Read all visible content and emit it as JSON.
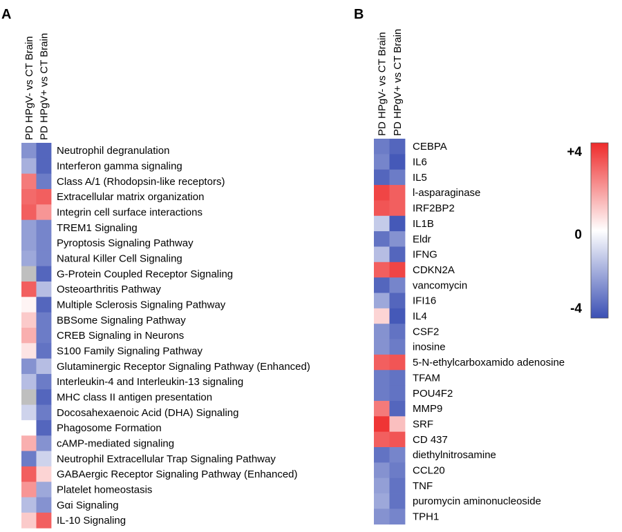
{
  "chart_data": [
    {
      "type": "heatmap",
      "panel": "A",
      "columns": [
        "PD HPgV- vs CT Brain",
        "PD HPgV+ vs CT Brain"
      ],
      "rows": [
        "Neutrophil degranulation",
        "Interferon gamma signaling",
        "Class A/1 (Rhodopsin-like receptors)",
        "Extracellular matrix organization",
        "Integrin cell surface interactions",
        "TREM1 Signaling",
        "Pyroptosis Signaling Pathway",
        "Natural Killer Cell Signaling",
        "G-Protein Coupled Receptor Signaling",
        "Osteoarthritis Pathway",
        "Multiple Sclerosis Signaling Pathway",
        "BBSome Signaling Pathway",
        "CREB Signaling in Neurons",
        "S100 Family Signaling Pathway",
        "Glutaminergic Receptor Signaling Pathway (Enhanced)",
        "Interleukin-4 and Interleukin-13 signaling",
        "MHC class II antigen presentation",
        "Docosahexaenoic Acid (DHA) Signaling",
        "Phagosome Formation",
        "cAMP-mediated signaling",
        "Neutrophil Extracellular Trap Signaling Pathway",
        "GABAergic Receptor Signaling Pathway (Enhanced)",
        "Platelet homeostasis",
        "Gαi Signaling",
        "IL-10 Signaling"
      ],
      "values": [
        [
          -2.5,
          -3.5
        ],
        [
          -1.8,
          -3.5
        ],
        [
          2.5,
          -3.0
        ],
        [
          2.8,
          3.0
        ],
        [
          3.0,
          2.0
        ],
        [
          -2.2,
          -2.8
        ],
        [
          -2.2,
          -2.8
        ],
        [
          -2.0,
          -2.8
        ],
        [
          null,
          -3.5
        ],
        [
          3.0,
          -1.5
        ],
        [
          0.2,
          -3.5
        ],
        [
          1.0,
          -3.0
        ],
        [
          1.5,
          -3.0
        ],
        [
          0.5,
          -3.2
        ],
        [
          -2.5,
          -1.5
        ],
        [
          -1.5,
          -3.0
        ],
        [
          null,
          -3.5
        ],
        [
          -1.0,
          -3.0
        ],
        [
          0.0,
          -3.5
        ],
        [
          1.5,
          -2.5
        ],
        [
          -3.0,
          -1.0
        ],
        [
          3.0,
          0.8
        ],
        [
          2.0,
          -2.0
        ],
        [
          -1.5,
          -2.5
        ],
        [
          1.0,
          3.0
        ]
      ]
    },
    {
      "type": "heatmap",
      "panel": "B",
      "columns": [
        "PD HPgV- vs CT Brain",
        "PD HPgV+ vs CT Brain"
      ],
      "rows": [
        "CEBPA",
        "IL6",
        "IL5",
        "l-asparaginase",
        "IRF2BP2",
        "IL1B",
        "Eldr",
        "IFNG",
        "CDKN2A",
        "vancomycin",
        "IFI16",
        "IL4",
        "CSF2",
        "inosine",
        "5-N-ethylcarboxamido adenosine",
        "TFAM",
        "POU4F2",
        "MMP9",
        "SRF",
        "CD 437",
        "diethylnitrosamine",
        "CCL20",
        "TNF",
        "puromycin aminonucleoside",
        "TPH1"
      ],
      "values": [
        [
          -3.0,
          -3.5
        ],
        [
          -2.8,
          -3.8
        ],
        [
          -3.5,
          -3.0
        ],
        [
          3.5,
          3.0
        ],
        [
          3.2,
          3.0
        ],
        [
          -1.2,
          -3.8
        ],
        [
          -3.2,
          -2.5
        ],
        [
          -1.5,
          -3.5
        ],
        [
          3.0,
          3.5
        ],
        [
          -3.5,
          -2.8
        ],
        [
          -2.0,
          -3.5
        ],
        [
          0.8,
          -3.8
        ],
        [
          -2.5,
          -3.2
        ],
        [
          -2.5,
          -3.0
        ],
        [
          3.0,
          3.2
        ],
        [
          -3.0,
          -3.2
        ],
        [
          -3.0,
          -3.2
        ],
        [
          2.5,
          -3.5
        ],
        [
          3.8,
          1.2
        ],
        [
          3.0,
          3.2
        ],
        [
          -3.2,
          -2.8
        ],
        [
          -2.5,
          -3.0
        ],
        [
          -2.2,
          -3.2
        ],
        [
          -2.0,
          -3.2
        ],
        [
          -2.5,
          -2.8
        ]
      ]
    }
  ],
  "colorbar": {
    "max": 4,
    "min": -4,
    "max_label": "+4",
    "mid_label": "0",
    "min_label": "-4",
    "color_low": "#3b50b4",
    "color_mid": "#ffffff",
    "color_high": "#ee2a2a",
    "color_missing": "#bfbfbf"
  }
}
